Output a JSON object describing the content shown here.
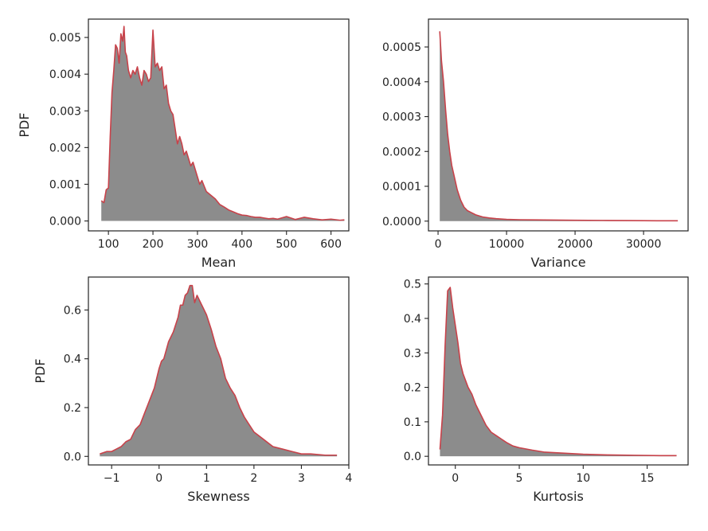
{
  "colors": {
    "line": "#c8424a",
    "fill": "#8c8c8c",
    "axis": "#222222",
    "background": "#ffffff"
  },
  "chart_data": [
    {
      "type": "area",
      "panel": "top-left",
      "xlabel": "Mean",
      "ylabel": "PDF",
      "xlim": [
        55,
        640
      ],
      "ylim": [
        -0.00027,
        0.0055
      ],
      "xticks": [
        100,
        200,
        300,
        400,
        500,
        600
      ],
      "xtick_labels": [
        "100",
        "200",
        "300",
        "400",
        "500",
        "600"
      ],
      "yticks": [
        0,
        0.001,
        0.002,
        0.003,
        0.004,
        0.005
      ],
      "ytick_labels": [
        "0.000",
        "0.001",
        "0.002",
        "0.003",
        "0.004",
        "0.005"
      ],
      "x": [
        84,
        90,
        95,
        100,
        104,
        108,
        112,
        116,
        120,
        124,
        128,
        132,
        135,
        138,
        141,
        145,
        150,
        155,
        160,
        165,
        170,
        175,
        180,
        185,
        190,
        195,
        200,
        205,
        210,
        215,
        220,
        225,
        230,
        235,
        240,
        245,
        250,
        255,
        260,
        265,
        270,
        275,
        280,
        285,
        290,
        295,
        300,
        305,
        310,
        315,
        320,
        330,
        340,
        350,
        360,
        370,
        380,
        390,
        400,
        410,
        420,
        430,
        440,
        450,
        460,
        470,
        480,
        500,
        520,
        540,
        560,
        580,
        600,
        620,
        630
      ],
      "y": [
        0.00055,
        0.0005,
        0.00085,
        0.0009,
        0.0023,
        0.0035,
        0.0041,
        0.0048,
        0.0047,
        0.0043,
        0.0051,
        0.0049,
        0.0053,
        0.0046,
        0.0045,
        0.0041,
        0.0039,
        0.0041,
        0.004,
        0.0042,
        0.0039,
        0.0037,
        0.0041,
        0.004,
        0.0038,
        0.0039,
        0.0052,
        0.0042,
        0.0043,
        0.0041,
        0.0042,
        0.0036,
        0.0037,
        0.0032,
        0.003,
        0.0029,
        0.0025,
        0.0021,
        0.0023,
        0.0021,
        0.0018,
        0.0019,
        0.0017,
        0.0015,
        0.0016,
        0.0014,
        0.0012,
        0.001,
        0.0011,
        0.00095,
        0.0008,
        0.0007,
        0.0006,
        0.00045,
        0.00038,
        0.0003,
        0.00025,
        0.0002,
        0.00016,
        0.00015,
        0.00012,
        0.0001,
        0.0001,
        8e-05,
        6e-05,
        7e-05,
        5e-05,
        0.00012,
        4e-05,
        0.0001,
        6e-05,
        3e-05,
        5e-05,
        2e-05,
        3e-05
      ]
    },
    {
      "type": "area",
      "panel": "top-right",
      "xlabel": "Variance",
      "ylabel": "",
      "xlim": [
        -1400,
        36500
      ],
      "ylim": [
        -2.8e-05,
        0.00058
      ],
      "xticks": [
        0,
        10000,
        20000,
        30000
      ],
      "xtick_labels": [
        "0",
        "10000",
        "20000",
        "30000"
      ],
      "yticks": [
        0,
        0.0001,
        0.0002,
        0.0003,
        0.0004,
        0.0005
      ],
      "ytick_labels": [
        "0.0000",
        "0.0001",
        "0.0002",
        "0.0003",
        "0.0004",
        "0.0005"
      ],
      "x": [
        250,
        500,
        800,
        1100,
        1400,
        1700,
        2000,
        2400,
        2800,
        3300,
        3800,
        4300,
        4800,
        5500,
        6500,
        7500,
        8500,
        10000,
        12000,
        14000,
        17000,
        20000,
        24000,
        28000,
        32000,
        35000
      ],
      "y": [
        0.000545,
        0.00046,
        0.0004,
        0.00032,
        0.00025,
        0.0002,
        0.00016,
        0.000125,
        9e-05,
        6e-05,
        4e-05,
        3e-05,
        2.5e-05,
        1.8e-05,
        1.2e-05,
        9e-06,
        7e-06,
        5e-06,
        4e-06,
        3.5e-06,
        3e-06,
        2.5e-06,
        2e-06,
        1.5e-06,
        1e-06,
        1e-06
      ]
    },
    {
      "type": "area",
      "panel": "bottom-left",
      "xlabel": "Skewness",
      "ylabel": "PDF",
      "xlim": [
        -1.49,
        4.0
      ],
      "ylim": [
        -0.035,
        0.735
      ],
      "xticks": [
        -1,
        0,
        1,
        2,
        3,
        4
      ],
      "xtick_labels": [
        "−1",
        "0",
        "1",
        "2",
        "3",
        "4"
      ],
      "yticks": [
        0,
        0.2,
        0.4,
        0.6
      ],
      "ytick_labels": [
        "0.0",
        "0.2",
        "0.4",
        "0.6"
      ],
      "x": [
        -1.25,
        -1.1,
        -1.0,
        -0.9,
        -0.8,
        -0.7,
        -0.6,
        -0.5,
        -0.4,
        -0.3,
        -0.2,
        -0.1,
        0.0,
        0.05,
        0.1,
        0.2,
        0.3,
        0.4,
        0.45,
        0.5,
        0.55,
        0.6,
        0.65,
        0.7,
        0.75,
        0.8,
        0.9,
        1.0,
        1.1,
        1.2,
        1.3,
        1.4,
        1.5,
        1.6,
        1.7,
        1.8,
        1.9,
        2.0,
        2.2,
        2.4,
        2.6,
        2.8,
        3.0,
        3.2,
        3.5,
        3.75
      ],
      "y": [
        0.01,
        0.02,
        0.02,
        0.03,
        0.04,
        0.06,
        0.07,
        0.11,
        0.13,
        0.18,
        0.23,
        0.28,
        0.36,
        0.39,
        0.4,
        0.47,
        0.51,
        0.57,
        0.62,
        0.62,
        0.66,
        0.67,
        0.7,
        0.7,
        0.63,
        0.66,
        0.62,
        0.58,
        0.52,
        0.45,
        0.4,
        0.32,
        0.28,
        0.25,
        0.2,
        0.16,
        0.13,
        0.1,
        0.07,
        0.04,
        0.03,
        0.02,
        0.01,
        0.01,
        0.005,
        0.005
      ]
    },
    {
      "type": "area",
      "panel": "bottom-right",
      "xlabel": "Kurtosis",
      "ylabel": "",
      "xlim": [
        -2.1,
        18.2
      ],
      "ylim": [
        -0.025,
        0.52
      ],
      "xticks": [
        0,
        5,
        10,
        15
      ],
      "xtick_labels": [
        "0",
        "5",
        "10",
        "15"
      ],
      "yticks": [
        0,
        0.1,
        0.2,
        0.3,
        0.4,
        0.5
      ],
      "ytick_labels": [
        "0.0",
        "0.1",
        "0.2",
        "0.3",
        "0.4",
        "0.5"
      ],
      "x": [
        -1.2,
        -1.0,
        -0.8,
        -0.6,
        -0.4,
        -0.2,
        0.0,
        0.2,
        0.4,
        0.6,
        0.8,
        1.0,
        1.3,
        1.6,
        2.0,
        2.4,
        2.8,
        3.2,
        3.6,
        4.0,
        4.5,
        5.0,
        6.0,
        7.0,
        8.0,
        9.0,
        10.0,
        12.0,
        14.0,
        16.0,
        17.3
      ],
      "y": [
        0.02,
        0.12,
        0.32,
        0.48,
        0.49,
        0.43,
        0.38,
        0.33,
        0.27,
        0.24,
        0.22,
        0.2,
        0.18,
        0.15,
        0.12,
        0.09,
        0.07,
        0.06,
        0.05,
        0.04,
        0.03,
        0.025,
        0.018,
        0.012,
        0.01,
        0.008,
        0.006,
        0.004,
        0.003,
        0.002,
        0.002
      ]
    }
  ]
}
